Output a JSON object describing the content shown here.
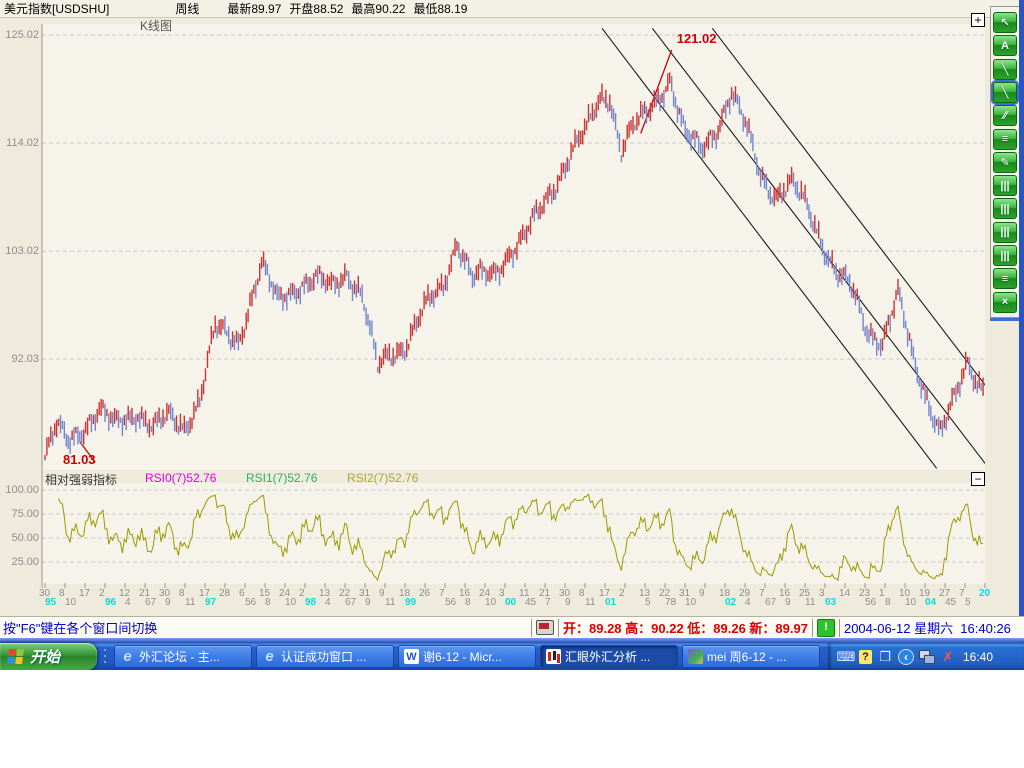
{
  "header": {
    "symbol": "美元指数[USDSHU]",
    "period": "周线",
    "latest": "最新89.97",
    "open": "开盘88.52",
    "high": "最高90.22",
    "low": "最低88.19"
  },
  "chart": {
    "pane_title": "K线图",
    "y_tick_labels": [
      "125.02",
      "114.02",
      "103.02",
      "92.03"
    ],
    "expand_button": "+",
    "collapse_button": "−"
  },
  "rsi_panel": {
    "title": "相对强弱指标",
    "rsi0_label": "RSI0(7)52.76",
    "rsi1_label": "RSI1(7)52.76",
    "rsi2_label": "RSI2(7)52.76",
    "y_tick_labels": [
      "100.00",
      "75.00",
      "50.00",
      "25.00"
    ]
  },
  "chart_data": {
    "type": "candlestick",
    "title": "美元指数 USDSHU 周线 K线图 + RSI(7)",
    "ylim": [
      80,
      126
    ],
    "y_gridlines": [
      125.02,
      114.02,
      103.02,
      92.03
    ],
    "weeks_total": 486,
    "close_anchors": [
      [
        0,
        82.0
      ],
      [
        6,
        85.0
      ],
      [
        12,
        83.6
      ],
      [
        20,
        85.2
      ],
      [
        28,
        86.8
      ],
      [
        36,
        85.2
      ],
      [
        48,
        86.8
      ],
      [
        56,
        85.0
      ],
      [
        64,
        86.0
      ],
      [
        72,
        85.2
      ],
      [
        80,
        88.0
      ],
      [
        88,
        95.0
      ],
      [
        100,
        94.0
      ],
      [
        112,
        101.5
      ],
      [
        120,
        98.0
      ],
      [
        130,
        99.5
      ],
      [
        140,
        100.0
      ],
      [
        148,
        99.3
      ],
      [
        156,
        101.0
      ],
      [
        164,
        98.5
      ],
      [
        172,
        91.0
      ],
      [
        178,
        92.5
      ],
      [
        186,
        93.5
      ],
      [
        196,
        97.0
      ],
      [
        206,
        99.5
      ],
      [
        213,
        104.3
      ],
      [
        221,
        100.2
      ],
      [
        232,
        100.6
      ],
      [
        240,
        103.0
      ],
      [
        248,
        104.5
      ],
      [
        256,
        107.0
      ],
      [
        264,
        110.0
      ],
      [
        272,
        113.2
      ],
      [
        280,
        115.2
      ],
      [
        287,
        118.5
      ],
      [
        292,
        118.9
      ],
      [
        298,
        113.5
      ],
      [
        304,
        115.5
      ],
      [
        311,
        116.8
      ],
      [
        318,
        119.0
      ],
      [
        323,
        120.8
      ],
      [
        331,
        114.8
      ],
      [
        339,
        113.2
      ],
      [
        347,
        115.5
      ],
      [
        355,
        119.2
      ],
      [
        363,
        115.2
      ],
      [
        370,
        110.8
      ],
      [
        378,
        108.8
      ],
      [
        386,
        109.8
      ],
      [
        394,
        107.5
      ],
      [
        402,
        104.0
      ],
      [
        409,
        101.0
      ],
      [
        417,
        99.0
      ],
      [
        425,
        95.0
      ],
      [
        433,
        94.0
      ],
      [
        441,
        98.5
      ],
      [
        449,
        91.8
      ],
      [
        456,
        88.2
      ],
      [
        463,
        84.8
      ],
      [
        471,
        88.0
      ],
      [
        477,
        91.5
      ],
      [
        482,
        89.8
      ],
      [
        485,
        89.5
      ]
    ],
    "high_label": {
      "text": "121.02",
      "week": 323,
      "value": 121.02
    },
    "low_label": {
      "text": "81.03",
      "week": 0,
      "value": 81.03
    },
    "trendlines": [
      {
        "from": [
          288,
          125.7
        ],
        "to": [
          461,
          80.9
        ]
      },
      {
        "from": [
          314,
          125.7
        ],
        "to": [
          488,
          80.9
        ]
      },
      {
        "from": [
          345,
          125.7
        ],
        "to": [
          519,
          80.9
        ]
      }
    ],
    "pointer_line": {
      "from": [
        308,
        115.0
      ],
      "to": [
        324,
        123.5
      ]
    },
    "low_tick_line": {
      "from": [
        18,
        83.6
      ],
      "to": [
        26,
        81.5
      ]
    },
    "rsi": {
      "indicator": "RSI(7)",
      "gridlines": [
        100,
        75,
        50,
        25
      ],
      "ylim": [
        0,
        100
      ],
      "current": [
        52.76,
        52.76,
        52.76
      ]
    },
    "x_ticks": [
      [
        "30",
        "95",
        1
      ],
      [
        "8",
        "10",
        0
      ],
      [
        "17",
        "",
        0
      ],
      [
        "2",
        "96",
        1
      ],
      [
        "12",
        "4",
        0
      ],
      [
        "21",
        "67",
        0
      ],
      [
        "30",
        "9",
        0
      ],
      [
        "8",
        "11",
        0
      ],
      [
        "17",
        "97",
        1
      ],
      [
        "28",
        "",
        0
      ],
      [
        "6",
        "56",
        0
      ],
      [
        "15",
        "8",
        0
      ],
      [
        "24",
        "10",
        0
      ],
      [
        "2",
        "98",
        1
      ],
      [
        "13",
        "4",
        0
      ],
      [
        "22",
        "67",
        0
      ],
      [
        "31",
        "9",
        0
      ],
      [
        "9",
        "11",
        0
      ],
      [
        "18",
        "99",
        1
      ],
      [
        "26",
        "",
        0
      ],
      [
        "7",
        "56",
        0
      ],
      [
        "16",
        "8",
        0
      ],
      [
        "24",
        "10",
        0
      ],
      [
        "3",
        "00",
        1
      ],
      [
        "11",
        "45",
        0
      ],
      [
        "21",
        "7",
        0
      ],
      [
        "30",
        "9",
        0
      ],
      [
        "8",
        "11",
        0
      ],
      [
        "17",
        "01",
        1
      ],
      [
        "2",
        "",
        0
      ],
      [
        "13",
        "5",
        0
      ],
      [
        "22",
        "78",
        0
      ],
      [
        "31",
        "10",
        0
      ],
      [
        "9",
        "",
        0
      ],
      [
        "18",
        "02",
        1
      ],
      [
        "29",
        "4",
        0
      ],
      [
        "7",
        "67",
        0
      ],
      [
        "16",
        "9",
        0
      ],
      [
        "25",
        "11",
        0
      ],
      [
        "3",
        "03",
        1
      ],
      [
        "14",
        "",
        0
      ],
      [
        "23",
        "56",
        0
      ],
      [
        "1",
        "8",
        0
      ],
      [
        "10",
        "10",
        0
      ],
      [
        "19",
        "04",
        1
      ],
      [
        "27",
        "45",
        0
      ],
      [
        "7",
        "5",
        0
      ],
      [
        "20",
        "",
        2
      ]
    ]
  },
  "colors": {
    "up_bar": "#cc3333",
    "down_bar": "#7585cc",
    "rsi_line": "#9a9a00",
    "grid": "#c9c9c9",
    "annotation": "#cc0000",
    "year_tick": "#00dede",
    "tick_text": "#8c8c8c",
    "trendline": "#1a1a1a"
  },
  "toolbar": {
    "buttons": [
      {
        "name": "pointer-tool",
        "glyph": "↖",
        "selected": false
      },
      {
        "name": "text-tool",
        "glyph": "A",
        "selected": false
      },
      {
        "name": "line-tool",
        "glyph": "╲",
        "selected": false
      },
      {
        "name": "trendline-tool",
        "glyph": "╲",
        "selected": true
      },
      {
        "name": "parallel-lines-tool",
        "glyph": "∕∕",
        "selected": false
      },
      {
        "name": "list-tool",
        "glyph": "≡",
        "selected": false
      },
      {
        "name": "draw-tool",
        "glyph": "✎",
        "selected": false
      },
      {
        "name": "bars-tool-1",
        "glyph": "|||",
        "selected": false
      },
      {
        "name": "bars-tool-2",
        "glyph": "|||",
        "selected": false
      },
      {
        "name": "bars-tool-3",
        "glyph": "|||",
        "selected": false
      },
      {
        "name": "bars-tool-4",
        "glyph": "|||",
        "selected": false
      },
      {
        "name": "list-tool-2",
        "glyph": "≡",
        "selected": false
      },
      {
        "name": "close-tool",
        "glyph": "×",
        "selected": false
      }
    ]
  },
  "statusbar": {
    "hint": "按\"F6\"键在各个窗口间切换",
    "quote": "开：89.28 高：90.22 低：89.26 新：89.97",
    "datetime": "2004-06-12 星期六  16:40:26",
    "green_badge": "!"
  },
  "taskbar": {
    "start_label": "开始",
    "windows": [
      {
        "label": "外汇论坛 - 主...",
        "icon": "ie-icon",
        "active": false
      },
      {
        "label": "认证成功窗口 ...",
        "icon": "ie-icon",
        "active": false
      },
      {
        "label": "谢6-12 - Micr...",
        "icon": "word-icon",
        "active": false
      },
      {
        "label": "汇眼外汇分析 ...",
        "icon": "chart-app-icon",
        "active": true
      },
      {
        "label": "mei 周6-12 - ...",
        "icon": "wps-icon",
        "active": false
      }
    ],
    "tray_icons": [
      {
        "name": "keyboard-icon",
        "glyph": "⌨",
        "cls": ""
      },
      {
        "name": "help-icon",
        "glyph": "?",
        "cls": "ti-help"
      },
      {
        "name": "window-switch-icon",
        "glyph": "❐",
        "cls": ""
      },
      {
        "name": "language-icon",
        "glyph": "‹",
        "cls": "ti-lang"
      },
      {
        "name": "network-icon",
        "glyph": "",
        "cls": "ti-net"
      },
      {
        "name": "disconnect-icon",
        "glyph": "✗",
        "cls": "ti-x"
      }
    ],
    "clock": "16:40"
  }
}
